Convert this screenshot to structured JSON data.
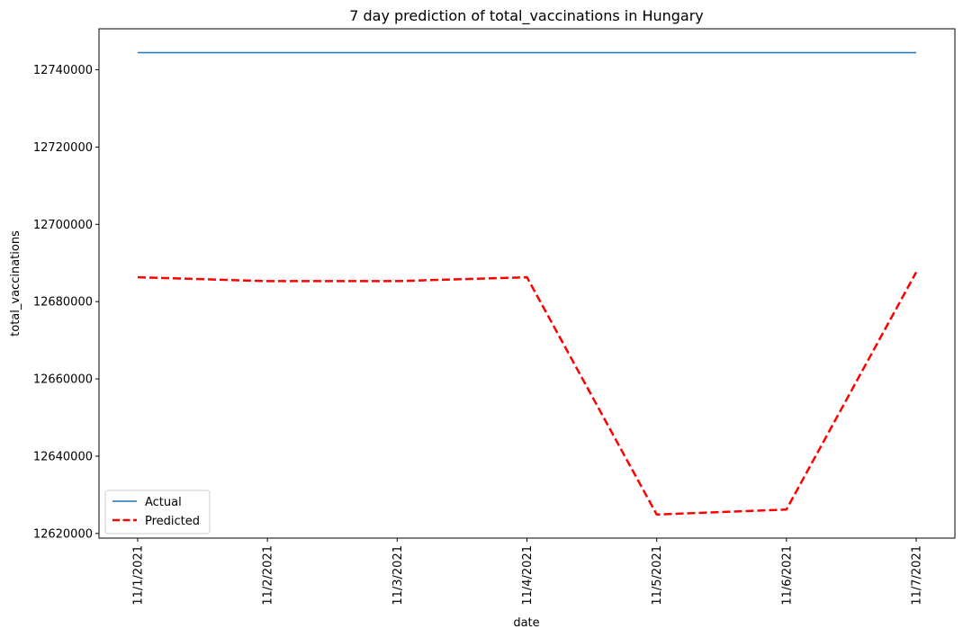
{
  "chart_data": {
    "type": "line",
    "title": "7 day prediction of total_vaccinations in Hungary",
    "xlabel": "date",
    "ylabel": "total_vaccinations",
    "categories": [
      "11/1/2021",
      "11/2/2021",
      "11/3/2021",
      "11/4/2021",
      "11/5/2021",
      "11/6/2021",
      "11/7/2021"
    ],
    "series": [
      {
        "name": "Actual",
        "color": "#1f77b4",
        "style": "solid",
        "values": [
          12744422,
          12744422,
          12744422,
          12744422,
          12744422,
          12744422,
          12744422
        ]
      },
      {
        "name": "Predicted",
        "color": "#ff0000",
        "style": "dashed",
        "values": [
          12686300,
          12685300,
          12685300,
          12686300,
          12624900,
          12626200,
          12687600
        ]
      }
    ],
    "yticks": [
      12620000,
      12640000,
      12660000,
      12680000,
      12700000,
      12720000,
      12740000
    ],
    "ylim": [
      12618800,
      12750600
    ],
    "grid": false,
    "legend": "lower-left"
  }
}
